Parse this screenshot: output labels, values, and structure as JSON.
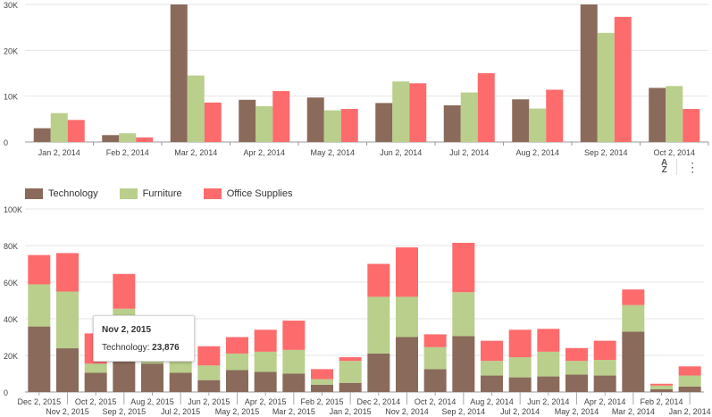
{
  "chart_data": [
    {
      "type": "bar",
      "categories": [
        "Jan 2, 2014",
        "Feb 2, 2014",
        "Mar 2, 2014",
        "Apr 2, 2014",
        "May 2, 2014",
        "Jun 2, 2014",
        "Jul 2, 2014",
        "Aug 2, 2014",
        "Sep 2, 2014",
        "Oct 2, 2014"
      ],
      "series": [
        {
          "name": "Technology",
          "values": [
            3000,
            1500,
            31000,
            9200,
            9700,
            8500,
            8000,
            9300,
            30000,
            11800
          ]
        },
        {
          "name": "Furniture",
          "values": [
            6300,
            1900,
            14500,
            7800,
            6900,
            13200,
            10800,
            7300,
            23800,
            12200
          ]
        },
        {
          "name": "Office Supplies",
          "values": [
            4800,
            1000,
            8600,
            11100,
            7200,
            12800,
            15000,
            11400,
            27300,
            7200
          ]
        }
      ],
      "y_ticks": [
        "0",
        "10K",
        "20K",
        "30K"
      ],
      "ylim": [
        0,
        30000
      ],
      "grid": true
    },
    {
      "type": "bar",
      "stacked": true,
      "categories": [
        "Dec 2, 2015",
        "Nov 2, 2015",
        "Oct 2, 2015",
        "Sep 2, 2015",
        "Aug 2, 2015",
        "Jul 2, 2015",
        "Jun 2, 2015",
        "May 2, 2015",
        "Apr 2, 2015",
        "Mar 2, 2015",
        "Feb 2, 2015",
        "Jan 2, 2015",
        "Dec 2, 2014",
        "Nov 2, 2014",
        "Oct 2, 2014",
        "Sep 2, 2014",
        "Aug 2, 2014",
        "Jul 2, 2014",
        "Jun 2, 2014",
        "May 2, 2014",
        "Apr 2, 2014",
        "Mar 2, 2014",
        "Feb 2, 2014",
        "Jan 2, 2014"
      ],
      "series": [
        {
          "name": "Technology",
          "values": [
            35800,
            23876,
            10500,
            17000,
            15500,
            10500,
            6500,
            12000,
            11000,
            10000,
            4000,
            5000,
            21000,
            30000,
            12500,
            30500,
            9000,
            8000,
            8500,
            9500,
            9000,
            33000,
            1500,
            3000
          ]
        },
        {
          "name": "Furniture",
          "values": [
            23000,
            31000,
            5000,
            28500,
            3000,
            7000,
            8000,
            9000,
            11000,
            13000,
            3000,
            12000,
            31000,
            22000,
            12000,
            24000,
            8000,
            11000,
            13500,
            7500,
            8500,
            14500,
            2000,
            6000
          ]
        },
        {
          "name": "Office Supplies",
          "values": [
            16000,
            21000,
            16500,
            19000,
            0,
            2500,
            10500,
            9000,
            12000,
            16000,
            5500,
            2000,
            18000,
            27000,
            7000,
            27000,
            11000,
            15000,
            12500,
            7000,
            10500,
            8500,
            1000,
            5000
          ]
        }
      ],
      "y_ticks": [
        "0",
        "20K",
        "40K",
        "60K",
        "80K",
        "100K"
      ],
      "ylim": [
        0,
        100000
      ],
      "grid": true
    }
  ],
  "colors": {
    "Technology": "#8a6a5a",
    "Furniture": "#b9cf8b",
    "Office Supplies": "#fd6b6c"
  },
  "legend": {
    "items": [
      "Technology",
      "Furniture",
      "Office Supplies"
    ]
  },
  "toolbar": {
    "sort_icon": "sort-az-icon",
    "sort_label": "A\nZ",
    "more_icon": "more-vertical-icon",
    "more_label": "⋮"
  },
  "tooltip": {
    "title": "Nov 2, 2015",
    "series": "Technology",
    "value": "23,876"
  }
}
